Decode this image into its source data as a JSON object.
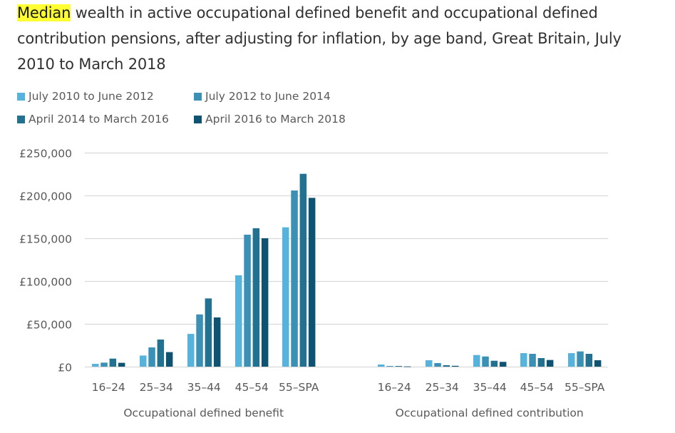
{
  "title": {
    "highlight": "Median",
    "rest": " wealth in active occupational defined benefit and occupational defined contribution pensions, after adjusting for inflation, by age band, Great Britain, July 2010 to March 2018",
    "highlight_color": "#ffff33"
  },
  "chart_data": {
    "type": "bar",
    "title": "Median wealth in active occupational defined benefit and occupational defined contribution pensions, after adjusting for inflation, by age band, Great Britain, July 2010 to March 2018",
    "xlabel": "",
    "ylabel": "",
    "ylim": [
      0,
      250000
    ],
    "yticks": [
      0,
      50000,
      100000,
      150000,
      200000,
      250000
    ],
    "ytick_labels": [
      "£0",
      "£50,000",
      "£100,000",
      "£150,000",
      "£200,000",
      "£250,000"
    ],
    "grid": true,
    "legend_position": "top-left",
    "groups": [
      {
        "name": "Occupational defined benefit",
        "categories": [
          "16–24",
          "25–34",
          "35–44",
          "45–54",
          "55–SPA"
        ]
      },
      {
        "name": "Occupational defined contribution",
        "categories": [
          "16–24",
          "25–34",
          "35–44",
          "45–54",
          "55–SPA"
        ]
      }
    ],
    "series": [
      {
        "name": "July 2010 to June 2012",
        "color": "#56b4dc",
        "values": [
          [
            3300,
            13000,
            38300,
            106700,
            162800
          ],
          [
            2500,
            7500,
            13600,
            15800,
            15800
          ]
        ]
      },
      {
        "name": "July 2012 to June 2014",
        "color": "#3b90b6",
        "values": [
          [
            4700,
            22500,
            61000,
            154200,
            205800
          ],
          [
            800,
            4200,
            11900,
            15000,
            17800
          ]
        ]
      },
      {
        "name": "April 2014 to March 2016",
        "color": "#237190",
        "values": [
          [
            9400,
            31700,
            79700,
            161700,
            225300
          ],
          [
            800,
            1700,
            6900,
            10000,
            15000
          ]
        ]
      },
      {
        "name": "April 2016 to March 2018",
        "color": "#0e5371",
        "values": [
          [
            4500,
            17000,
            57500,
            150000,
            197200
          ],
          [
            300,
            1000,
            5600,
            7800,
            7500
          ]
        ]
      }
    ]
  }
}
